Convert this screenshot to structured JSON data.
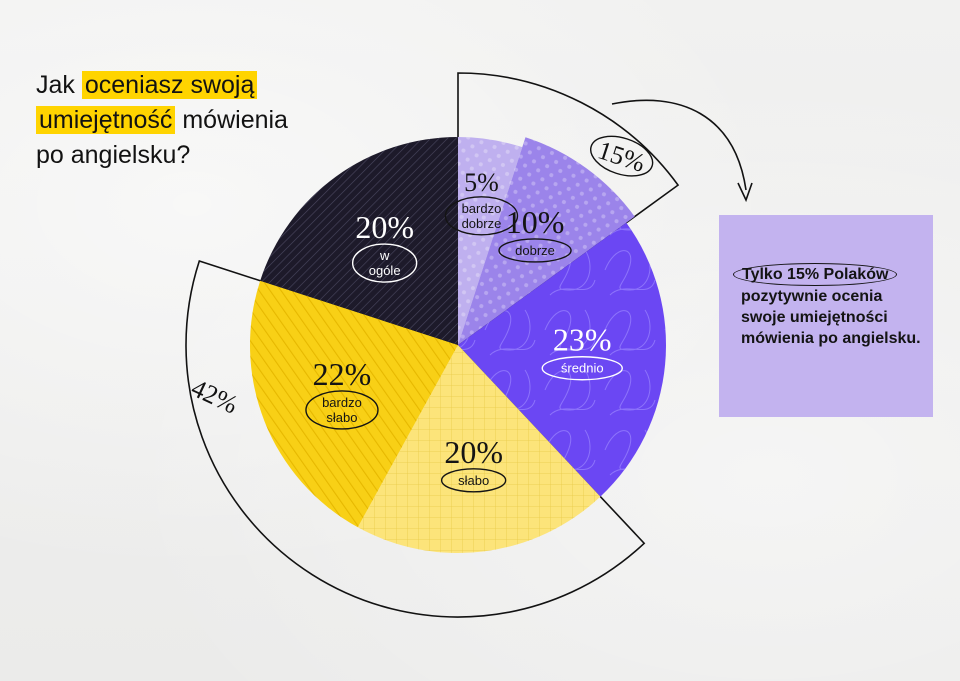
{
  "title": {
    "part1": "Jak ",
    "hl1": "oceniasz swoją",
    "hl2": "umiejętność",
    "part2": " mówienia",
    "part3": "po angielsku?"
  },
  "note": {
    "highlight": "Tylko 15% Polaków",
    "rest": "pozytywnie ocenia swoje umiejętności mówienia po angielsku."
  },
  "chart_data": {
    "type": "pie",
    "title": "Jak oceniasz swoją umiejętność mówienia po angielsku?",
    "slices": [
      {
        "label": "bardzo dobrze",
        "value": 5,
        "display": "5%",
        "color": "#bfb0ef"
      },
      {
        "label": "dobrze",
        "value": 10,
        "display": "10%",
        "color": "#9b84ea"
      },
      {
        "label": "średnio",
        "value": 23,
        "display": "23%",
        "color": "#6b47f3"
      },
      {
        "label": "słabo",
        "value": 20,
        "display": "20%",
        "color": "#fce47a"
      },
      {
        "label": "bardzo słabo",
        "value": 22,
        "display": "22%",
        "color": "#f8d016"
      },
      {
        "label": "w ogóle",
        "value": 20,
        "display": "20%",
        "color": "#1d1a2a"
      }
    ],
    "group_brackets": [
      {
        "label": "15%",
        "slices": [
          "bardzo dobrze",
          "dobrze"
        ]
      },
      {
        "label": "42%",
        "slices": [
          "słabo",
          "bardzo słabo"
        ]
      }
    ]
  }
}
